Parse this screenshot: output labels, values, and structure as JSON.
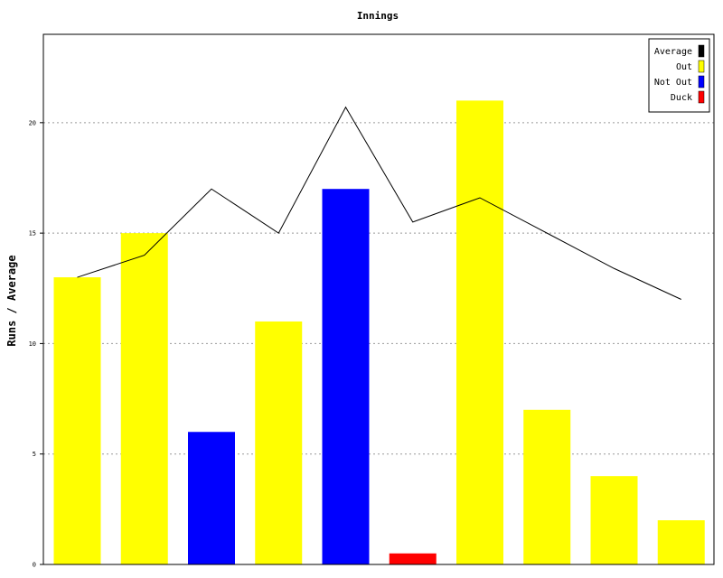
{
  "chart_data": {
    "type": "bar",
    "title": "Innings",
    "xlabel": "",
    "ylabel": "Runs / Average",
    "ylim": [
      0,
      24
    ],
    "y_ticks": [
      0,
      5,
      10,
      15,
      20
    ],
    "grid": "y-dotted",
    "legend_position": "top-right",
    "categories": [
      "",
      "",
      "",
      "",
      "",
      "",
      "",
      "",
      "",
      ""
    ],
    "bars": [
      {
        "value": 13,
        "kind": "Out"
      },
      {
        "value": 15,
        "kind": "Out"
      },
      {
        "value": 6,
        "kind": "Not Out"
      },
      {
        "value": 11,
        "kind": "Out"
      },
      {
        "value": 17,
        "kind": "Not Out"
      },
      {
        "value": 0.5,
        "kind": "Duck"
      },
      {
        "value": 21,
        "kind": "Out"
      },
      {
        "value": 7,
        "kind": "Out"
      },
      {
        "value": 4,
        "kind": "Out"
      },
      {
        "value": 2,
        "kind": "Out"
      }
    ],
    "line": {
      "name": "Average",
      "values": [
        13,
        14,
        17,
        15,
        20.7,
        15.5,
        16.6,
        15,
        13.4,
        12
      ]
    },
    "legend": [
      {
        "label": "Average",
        "color": "#000000"
      },
      {
        "label": "Out",
        "color": "#ffff00"
      },
      {
        "label": "Not Out",
        "color": "#0000ff"
      },
      {
        "label": "Duck",
        "color": "#ff0000"
      }
    ],
    "colors": {
      "Out": "#ffff00",
      "Not Out": "#0000ff",
      "Duck": "#ff0000",
      "Average": "#000000"
    }
  }
}
